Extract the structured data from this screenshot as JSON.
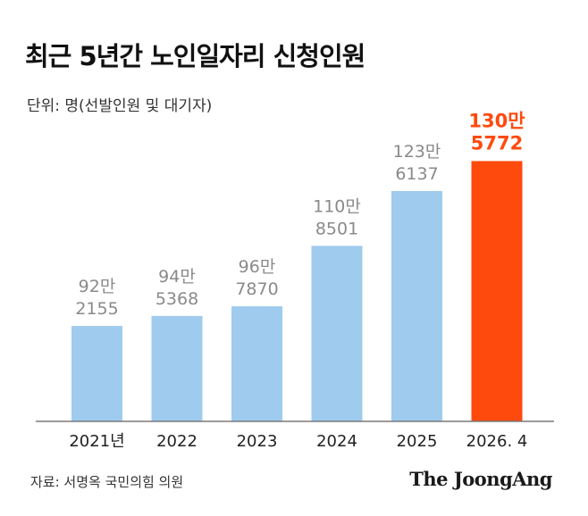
{
  "header": {
    "title": "최근 5년간 노인일자리 신청인원",
    "unit": "단위: 명(선발인원 및 대기자)"
  },
  "footer": {
    "source": "자료: 서명옥 국민의힘 의원",
    "logo_text": "The JoongAng"
  },
  "colors": {
    "bar": "#9fcbee",
    "highlight": "#ff4a0e",
    "value_label": "#8a8a8a",
    "axis": "#7a7a7a",
    "category_label": "#222222"
  },
  "chart_data": {
    "type": "bar",
    "title": "최근 5년간 노인일자리 신청인원",
    "ylabel": "단위: 명(선발인원 및 대기자)",
    "categories": [
      "2021년",
      "2022",
      "2023",
      "2024",
      "2025",
      "2026. 4"
    ],
    "values": [
      922155,
      945368,
      967870,
      1108501,
      1236137,
      1305772
    ],
    "value_labels": [
      [
        "92만",
        "2155"
      ],
      [
        "94만",
        "5368"
      ],
      [
        "96만",
        "7870"
      ],
      [
        "110만",
        "8501"
      ],
      [
        "123만",
        "6137"
      ],
      [
        "130만",
        "5772"
      ]
    ],
    "highlight_index": 5,
    "grid": false,
    "legend": "none"
  }
}
